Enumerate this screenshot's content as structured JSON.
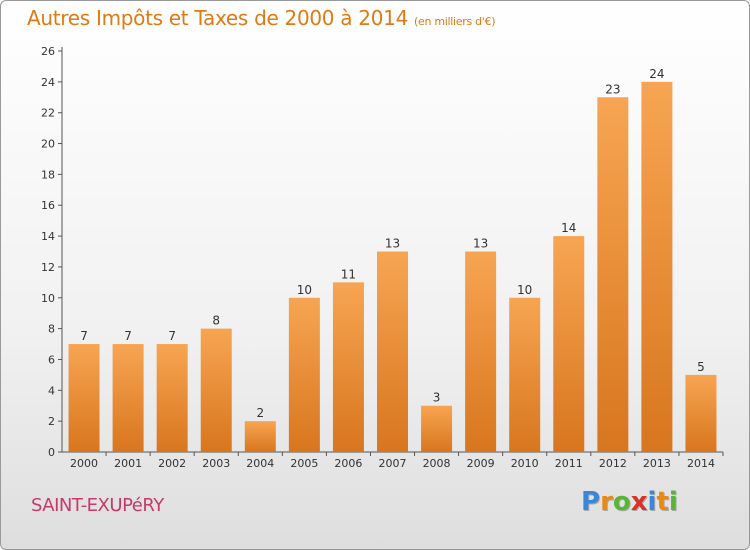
{
  "chart_data": {
    "type": "bar",
    "title": "Autres Impôts et Taxes de 2000 à 2014",
    "subtitle": "(en milliers d'€)",
    "categories": [
      "2000",
      "2001",
      "2002",
      "2003",
      "2004",
      "2005",
      "2006",
      "2007",
      "2008",
      "2009",
      "2010",
      "2011",
      "2012",
      "2013",
      "2014"
    ],
    "values": [
      7,
      7,
      7,
      8,
      2,
      10,
      11,
      13,
      3,
      13,
      10,
      14,
      23,
      24,
      5
    ],
    "ylim": [
      0,
      26
    ],
    "yticks": [
      0,
      2,
      4,
      6,
      8,
      10,
      12,
      14,
      16,
      18,
      20,
      22,
      24,
      26
    ],
    "grid": false,
    "bar_color": "#f0913a"
  },
  "footer": {
    "town": "SAINT-EXUPéRY",
    "logo": [
      "P",
      "r",
      "o",
      "x",
      "i",
      "t",
      "i"
    ],
    "logo_colors": [
      "#3a86d8",
      "#e88a1a",
      "#59b43a",
      "#d8322a",
      "#3a86d8",
      "#e88a1a",
      "#59b43a"
    ]
  }
}
